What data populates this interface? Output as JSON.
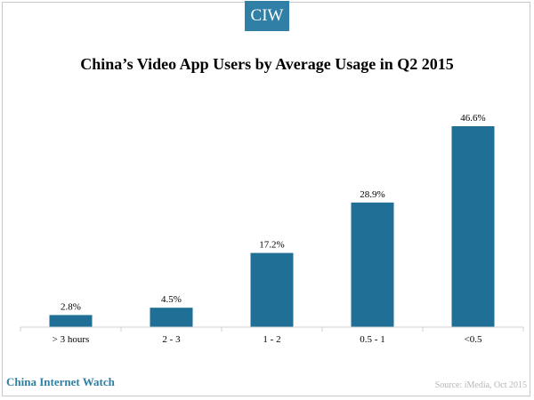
{
  "logo_text": "CIW",
  "brand_name": "China Internet Watch",
  "source_text": "Source: iMedia,  Oct 2015",
  "chart_data": {
    "type": "bar",
    "title": "China’s Video App Users by Average Usage in Q2 2015",
    "xlabel": "",
    "ylabel": "",
    "categories": [
      "> 3 hours",
      "2 - 3",
      "1 - 2",
      "0.5 - 1",
      "<0.5"
    ],
    "values": [
      2.8,
      4.5,
      17.2,
      28.9,
      46.6
    ],
    "value_labels": [
      "2.8%",
      "4.5%",
      "17.2%",
      "28.9%",
      "46.6%"
    ],
    "ylim": [
      0,
      50
    ],
    "grid": false,
    "legend": "none",
    "bar_color": "#1f6f96"
  }
}
